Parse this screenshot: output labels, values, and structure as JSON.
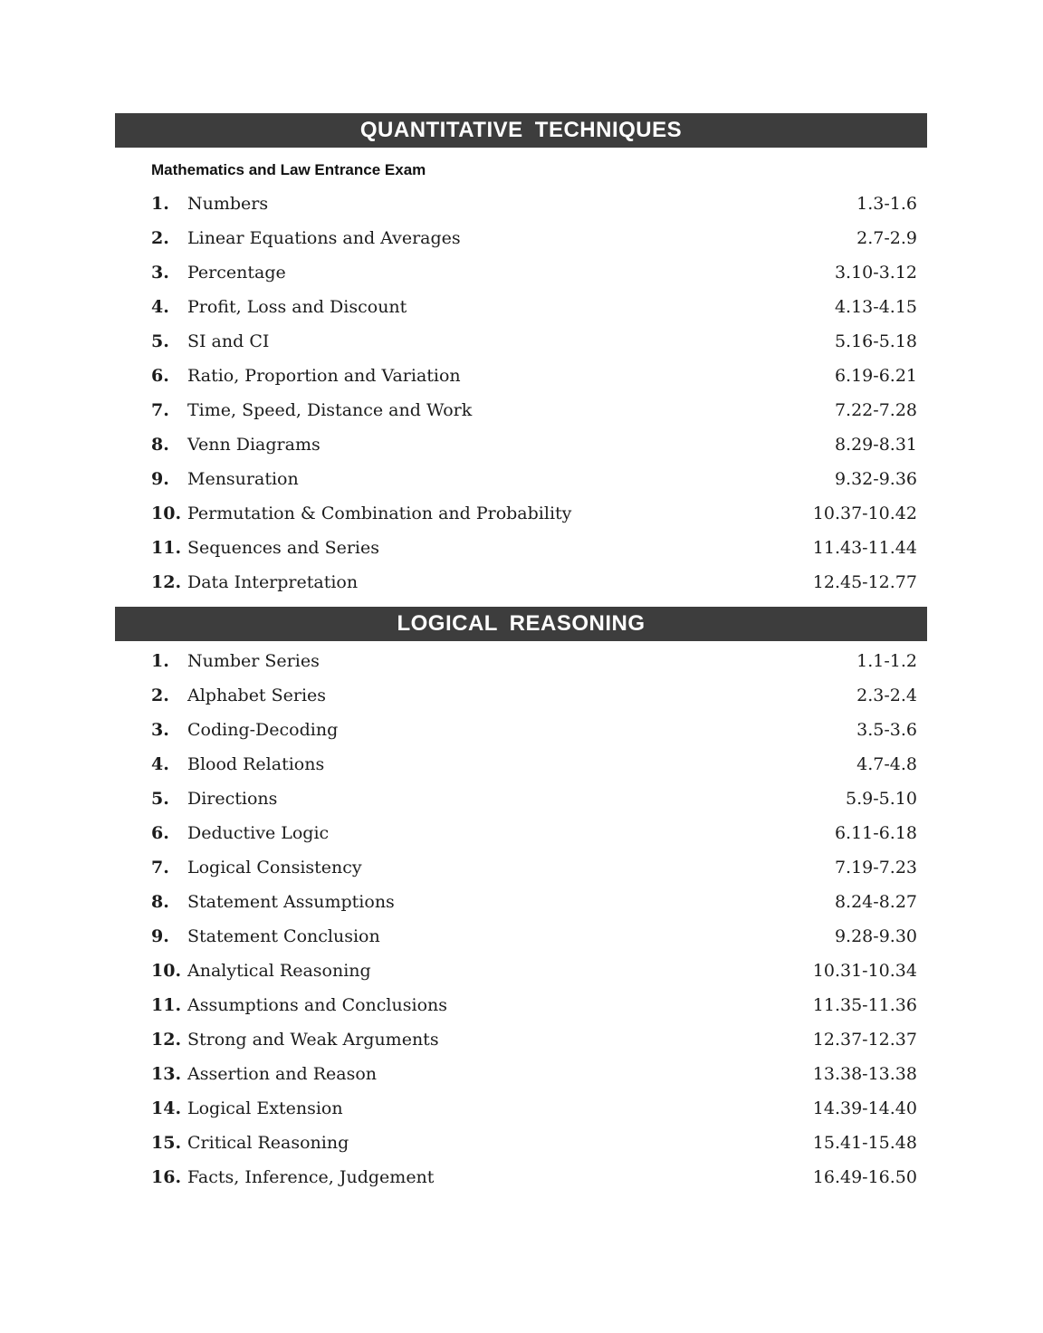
{
  "colors": {
    "header_bar": "#3d3d3d",
    "header_text": "#ffffff",
    "body_text": "#1c1c1c",
    "page_background": "#ffffff"
  },
  "sections": [
    {
      "title": "QUANTITATIVE TECHNIQUES",
      "subtitle": "Mathematics and Law Entrance Exam",
      "items": [
        {
          "num": "1.",
          "title": "Numbers",
          "pages": "1.3-1.6"
        },
        {
          "num": "2.",
          "title": "Linear Equations and Averages",
          "pages": "2.7-2.9"
        },
        {
          "num": "3.",
          "title": "Percentage",
          "pages": "3.10-3.12"
        },
        {
          "num": "4.",
          "title": "Profit, Loss and Discount",
          "pages": "4.13-4.15"
        },
        {
          "num": "5.",
          "title": "SI and CI",
          "pages": "5.16-5.18"
        },
        {
          "num": "6.",
          "title": "Ratio, Proportion and Variation",
          "pages": "6.19-6.21"
        },
        {
          "num": "7.",
          "title": "Time, Speed, Distance and Work",
          "pages": "7.22-7.28"
        },
        {
          "num": "8.",
          "title": "Venn Diagrams",
          "pages": "8.29-8.31"
        },
        {
          "num": "9.",
          "title": "Mensuration",
          "pages": "9.32-9.36"
        },
        {
          "num": "10.",
          "title": "Permutation & Combination and Probability",
          "pages": "10.37-10.42"
        },
        {
          "num": "11.",
          "title": "Sequences and Series",
          "pages": "11.43-11.44"
        },
        {
          "num": "12.",
          "title": "Data Interpretation",
          "pages": "12.45-12.77"
        }
      ]
    },
    {
      "title": "LOGICAL REASONING",
      "subtitle": "",
      "items": [
        {
          "num": "1.",
          "title": "Number Series",
          "pages": "1.1-1.2"
        },
        {
          "num": "2.",
          "title": "Alphabet Series",
          "pages": "2.3-2.4"
        },
        {
          "num": "3.",
          "title": "Coding-Decoding",
          "pages": "3.5-3.6"
        },
        {
          "num": "4.",
          "title": "Blood Relations",
          "pages": "4.7-4.8"
        },
        {
          "num": "5.",
          "title": "Directions",
          "pages": "5.9-5.10"
        },
        {
          "num": "6.",
          "title": "Deductive Logic",
          "pages": "6.11-6.18"
        },
        {
          "num": "7.",
          "title": "Logical Consistency",
          "pages": "7.19-7.23"
        },
        {
          "num": "8.",
          "title": "Statement Assumptions",
          "pages": "8.24-8.27"
        },
        {
          "num": "9.",
          "title": "Statement Conclusion",
          "pages": "9.28-9.30"
        },
        {
          "num": "10.",
          "title": "Analytical Reasoning",
          "pages": "10.31-10.34"
        },
        {
          "num": "11.",
          "title": "Assumptions and Conclusions",
          "pages": "11.35-11.36"
        },
        {
          "num": "12.",
          "title": "Strong and Weak Arguments",
          "pages": "12.37-12.37"
        },
        {
          "num": "13.",
          "title": "Assertion and Reason",
          "pages": "13.38-13.38"
        },
        {
          "num": "14.",
          "title": "Logical Extension",
          "pages": "14.39-14.40"
        },
        {
          "num": "15.",
          "title": "Critical Reasoning",
          "pages": "15.41-15.48"
        },
        {
          "num": "16.",
          "title": "Facts, Inference, Judgement",
          "pages": "16.49-16.50"
        }
      ]
    }
  ]
}
